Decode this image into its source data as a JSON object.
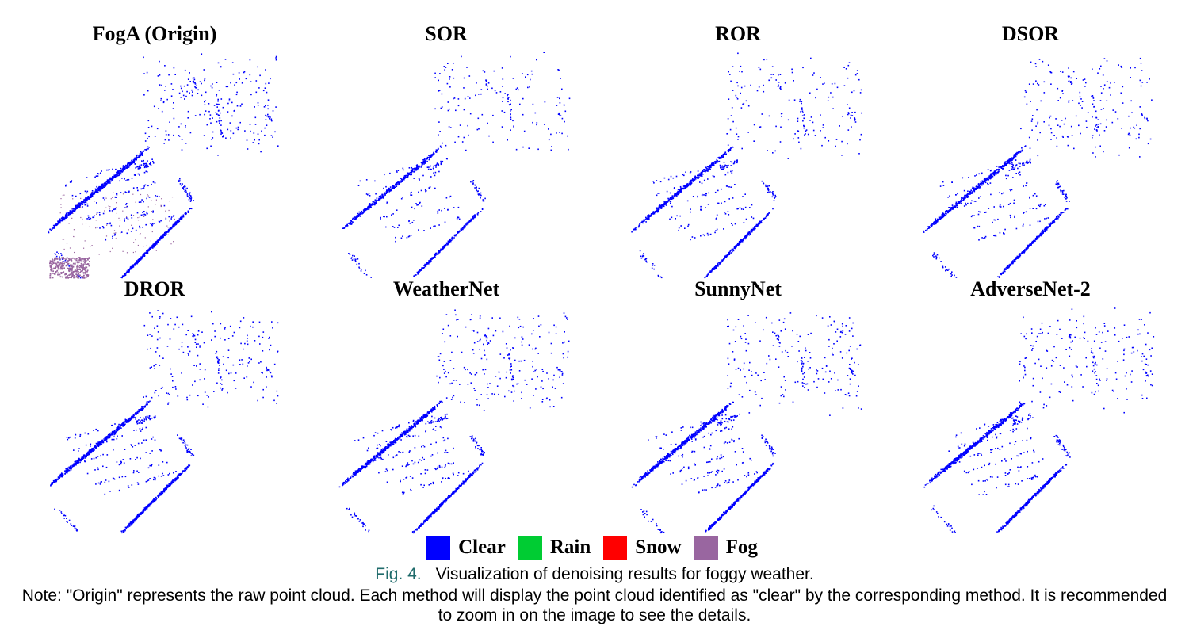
{
  "panels": [
    {
      "title": "FogA (Origin)",
      "fog": true,
      "density": 1.0
    },
    {
      "title": "SOR",
      "fog": false,
      "density": 0.65
    },
    {
      "title": "ROR",
      "fog": false,
      "density": 0.7
    },
    {
      "title": "DSOR",
      "fog": false,
      "density": 0.8
    },
    {
      "title": "DROR",
      "fog": false,
      "density": 0.85
    },
    {
      "title": "WeatherNet",
      "fog": false,
      "density": 0.9
    },
    {
      "title": "SunnyNet",
      "fog": false,
      "density": 0.85
    },
    {
      "title": "AdverseNet-2",
      "fog": false,
      "density": 0.8
    }
  ],
  "legend": [
    {
      "label": "Clear",
      "color": "#0000ff"
    },
    {
      "label": "Rain",
      "color": "#00cc33"
    },
    {
      "label": "Snow",
      "color": "#ff0000"
    },
    {
      "label": "Fog",
      "color": "#9966a0"
    }
  ],
  "caption": {
    "fig_label": "Fig. 4.",
    "text": "Visualization of denoising results for foggy weather."
  },
  "note": "Note: \"Origin\" represents the raw point cloud. Each method will display the point cloud identified as \"clear\" by the corresponding method. It is recommended to zoom in on the image to see the details."
}
